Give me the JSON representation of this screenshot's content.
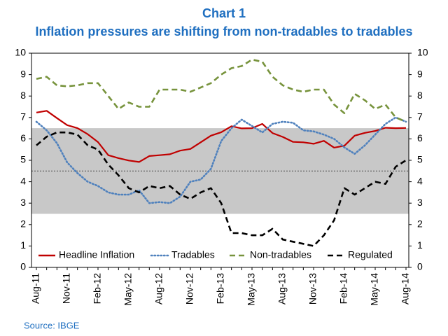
{
  "chart_data": {
    "type": "line",
    "title": "Chart 1",
    "subtitle": "Inflation pressures are shifting from non-tradables to tradables",
    "source": "Source: IBGE",
    "categories": [
      "Aug-11",
      null,
      null,
      "Nov-11",
      null,
      null,
      "Feb-12",
      null,
      null,
      "May-12",
      null,
      null,
      "Aug-12",
      null,
      null,
      "Nov-12",
      null,
      null,
      "Feb-13",
      null,
      null,
      "May-13",
      null,
      null,
      "Aug-13",
      null,
      null,
      "Nov-13",
      null,
      null,
      "Feb-14",
      null,
      null,
      "May-14",
      null,
      null,
      "Aug-14"
    ],
    "series": [
      {
        "name": "Headline Inflation",
        "color": "#c00000",
        "dash": "solid",
        "values": [
          7.23,
          7.31,
          6.97,
          6.64,
          6.5,
          6.22,
          5.85,
          5.24,
          5.1,
          4.99,
          4.92,
          5.2,
          5.24,
          5.28,
          5.45,
          5.53,
          5.84,
          6.15,
          6.31,
          6.59,
          6.49,
          6.5,
          6.7,
          6.27,
          6.09,
          5.86,
          5.84,
          5.77,
          5.91,
          5.59,
          5.68,
          6.15,
          6.28,
          6.37,
          6.52,
          6.5,
          6.51
        ]
      },
      {
        "name": "Tradables",
        "color": "#4f81bd",
        "dash": "dotted",
        "values": [
          6.8,
          6.4,
          5.8,
          4.9,
          4.4,
          4.0,
          3.8,
          3.5,
          3.4,
          3.4,
          3.6,
          3.0,
          3.05,
          3.0,
          3.3,
          4.0,
          4.1,
          4.6,
          5.9,
          6.5,
          6.9,
          6.6,
          6.3,
          6.7,
          6.8,
          6.75,
          6.4,
          6.35,
          6.2,
          6.0,
          5.6,
          5.3,
          5.7,
          6.2,
          6.7,
          7.0,
          6.8
        ]
      },
      {
        "name": "Non-tradables",
        "color": "#77933c",
        "dash": "dashed",
        "values": [
          8.8,
          8.9,
          8.5,
          8.45,
          8.5,
          8.6,
          8.6,
          8.0,
          7.4,
          7.7,
          7.5,
          7.5,
          8.3,
          8.3,
          8.3,
          8.2,
          8.4,
          8.6,
          9.0,
          9.3,
          9.4,
          9.7,
          9.6,
          8.9,
          8.5,
          8.3,
          8.2,
          8.3,
          8.3,
          7.6,
          7.2,
          8.1,
          7.8,
          7.4,
          7.6,
          7.0,
          6.8
        ]
      },
      {
        "name": "Regulated",
        "color": "#000000",
        "dash": "dashed",
        "values": [
          5.7,
          6.1,
          6.3,
          6.3,
          6.2,
          5.7,
          5.5,
          4.8,
          4.3,
          3.7,
          3.5,
          3.8,
          3.7,
          3.8,
          3.4,
          3.2,
          3.5,
          3.7,
          3.0,
          1.6,
          1.6,
          1.5,
          1.5,
          1.8,
          1.3,
          1.2,
          1.1,
          1.0,
          1.5,
          2.2,
          3.7,
          3.4,
          3.7,
          4.0,
          3.9,
          4.7,
          5.0
        ]
      }
    ],
    "ylim": [
      0,
      10
    ],
    "yticks": [
      0,
      1,
      2,
      3,
      4,
      5,
      6,
      7,
      8,
      9,
      10
    ],
    "y2lim": [
      0,
      10
    ],
    "y2ticks": [
      0,
      1,
      2,
      3,
      4,
      5,
      6,
      7,
      8,
      9,
      10
    ],
    "shaded_range": [
      2.5,
      6.5
    ],
    "reference_line": 4.5,
    "legend": "bottom",
    "grid": false
  }
}
